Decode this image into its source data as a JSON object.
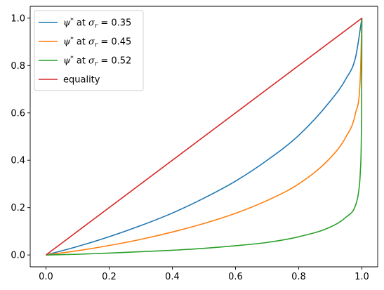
{
  "chart_data": {
    "type": "line",
    "title": "",
    "xlabel": "",
    "ylabel": "",
    "xlim": [
      -0.05,
      1.05
    ],
    "ylim": [
      -0.05,
      1.05
    ],
    "x_ticks": [
      "0.0",
      "0.2",
      "0.4",
      "0.6",
      "0.8",
      "1.0"
    ],
    "y_ticks": [
      "0.0",
      "0.2",
      "0.4",
      "0.6",
      "0.8",
      "1.0"
    ],
    "grid": false,
    "legend_position": "upper-left",
    "series": [
      {
        "name": "ψ* at σr = 0.35",
        "legend": {
          "prefix": "ψ",
          "sup": "*",
          "mid": " at ",
          "sym": "σ",
          "sub": "r",
          "suffix": " = 0.35"
        },
        "color": "#1f77b4",
        "x": [
          0,
          0.1,
          0.2,
          0.3,
          0.4,
          0.5,
          0.6,
          0.7,
          0.8,
          0.9,
          0.95,
          0.98,
          1.0
        ],
        "y": [
          0,
          0.036,
          0.077,
          0.124,
          0.177,
          0.24,
          0.312,
          0.4,
          0.505,
          0.65,
          0.745,
          0.835,
          1.0
        ]
      },
      {
        "name": "ψ* at σr = 0.45",
        "legend": {
          "prefix": "ψ",
          "sup": "*",
          "mid": " at ",
          "sym": "σ",
          "sub": "r",
          "suffix": " = 0.45"
        },
        "color": "#ff7f0e",
        "x": [
          0,
          0.1,
          0.2,
          0.3,
          0.4,
          0.5,
          0.6,
          0.7,
          0.8,
          0.9,
          0.95,
          0.98,
          0.995,
          1.0
        ],
        "y": [
          0,
          0.018,
          0.04,
          0.066,
          0.097,
          0.133,
          0.176,
          0.23,
          0.3,
          0.41,
          0.5,
          0.6,
          0.75,
          1.0
        ]
      },
      {
        "name": "ψ* at σr = 0.52",
        "legend": {
          "prefix": "ψ",
          "sup": "*",
          "mid": " at ",
          "sym": "σ",
          "sub": "r",
          "suffix": " = 0.52"
        },
        "color": "#2ca02c",
        "x": [
          0,
          0.1,
          0.2,
          0.3,
          0.4,
          0.5,
          0.6,
          0.7,
          0.8,
          0.9,
          0.95,
          0.98,
          0.99,
          0.995,
          0.999,
          1.0
        ],
        "y": [
          0,
          0.003,
          0.008,
          0.014,
          0.02,
          0.028,
          0.039,
          0.053,
          0.077,
          0.118,
          0.16,
          0.21,
          0.27,
          0.35,
          0.6,
          1.0
        ]
      },
      {
        "name": "equality",
        "legend": {
          "prefix": "equality",
          "sup": "",
          "mid": "",
          "sym": "",
          "sub": "",
          "suffix": ""
        },
        "color": "#d62728",
        "x": [
          0,
          1
        ],
        "y": [
          0,
          1
        ]
      }
    ]
  }
}
